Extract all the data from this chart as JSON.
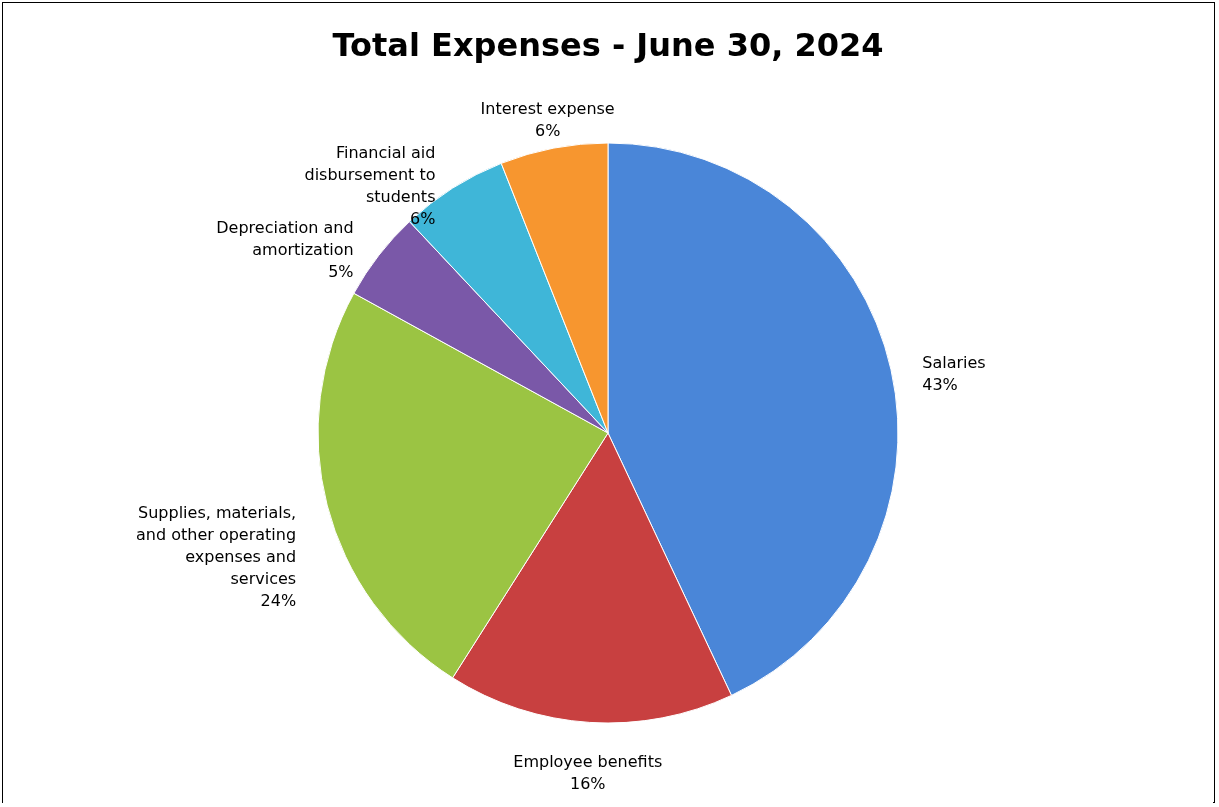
{
  "chart_data": {
    "type": "pie",
    "title": "Total Expenses - June 30, 2024",
    "categories": [
      "Salaries",
      "Employee benefits",
      "Supplies, materials, and other operating expenses and services",
      "Depreciation and amortization",
      "Financial aid disbursement to students",
      "Interest expense"
    ],
    "values": [
      43,
      16,
      24,
      5,
      6,
      6
    ],
    "value_labels": [
      "43%",
      "16%",
      "24%",
      "5%",
      "6%",
      "6%"
    ],
    "colors": [
      "#4a86d8",
      "#c84040",
      "#9bc443",
      "#7a58a8",
      "#3fb6d8",
      "#f7962f"
    ]
  }
}
